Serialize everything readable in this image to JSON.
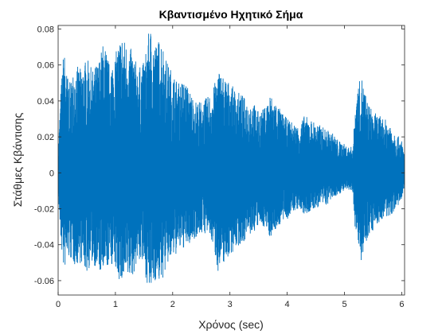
{
  "chart_data": {
    "type": "line",
    "title": "Κβαντισμένο Ηχητικό Σήμα",
    "xlabel": "Χρόνος (sec)",
    "ylabel": "Στάθμες Κβάντισης",
    "xlim": [
      0,
      6.05
    ],
    "ylim": [
      -0.068,
      0.082
    ],
    "x_ticks": [
      0,
      1,
      2,
      3,
      4,
      5,
      6
    ],
    "x_tick_labels": [
      "0",
      "1",
      "2",
      "3",
      "4",
      "5",
      "6"
    ],
    "y_ticks": [
      -0.06,
      -0.04,
      -0.02,
      0,
      0.02,
      0.04,
      0.06,
      0.08
    ],
    "y_tick_labels": [
      "-0.06",
      "-0.04",
      "-0.02",
      "0",
      "0.02",
      "0.04",
      "0.06",
      "0.08"
    ],
    "grid": false,
    "line_color": "#0072BD",
    "series": [
      {
        "x": [
          0.0,
          0.05,
          0.1,
          0.15,
          0.2,
          0.3,
          0.4,
          0.5,
          0.6,
          0.7,
          0.8,
          0.9,
          1.0,
          1.1,
          1.2,
          1.3,
          1.4,
          1.5,
          1.6,
          1.7,
          1.8,
          1.9,
          2.0,
          2.1,
          2.2,
          2.3,
          2.4,
          2.5,
          2.6,
          2.7,
          2.8,
          2.9,
          3.0,
          3.1,
          3.2,
          3.3,
          3.4,
          3.5,
          3.6,
          3.7,
          3.8,
          3.9,
          4.0,
          4.1,
          4.2,
          4.3,
          4.4,
          4.5,
          4.6,
          4.7,
          4.8,
          4.9,
          5.0,
          5.1,
          5.15,
          5.2,
          5.25,
          5.3,
          5.4,
          5.5,
          5.6,
          5.7,
          5.8,
          5.9,
          6.0,
          6.05
        ],
        "y_max": [
          0.012,
          0.048,
          0.07,
          0.056,
          0.05,
          0.06,
          0.058,
          0.064,
          0.057,
          0.062,
          0.074,
          0.06,
          0.066,
          0.078,
          0.072,
          0.068,
          0.058,
          0.062,
          0.082,
          0.072,
          0.076,
          0.062,
          0.056,
          0.05,
          0.052,
          0.046,
          0.04,
          0.04,
          0.042,
          0.046,
          0.058,
          0.054,
          0.05,
          0.046,
          0.044,
          0.04,
          0.04,
          0.034,
          0.036,
          0.044,
          0.04,
          0.034,
          0.03,
          0.028,
          0.026,
          0.032,
          0.03,
          0.028,
          0.026,
          0.024,
          0.022,
          0.018,
          0.016,
          0.014,
          0.016,
          0.044,
          0.05,
          0.054,
          0.04,
          0.034,
          0.032,
          0.03,
          0.028,
          0.022,
          0.018,
          0.01
        ],
        "y_min": [
          -0.012,
          -0.04,
          -0.055,
          -0.05,
          -0.048,
          -0.052,
          -0.05,
          -0.056,
          -0.05,
          -0.055,
          -0.058,
          -0.05,
          -0.054,
          -0.063,
          -0.06,
          -0.058,
          -0.048,
          -0.054,
          -0.068,
          -0.06,
          -0.062,
          -0.052,
          -0.048,
          -0.044,
          -0.042,
          -0.04,
          -0.036,
          -0.034,
          -0.034,
          -0.04,
          -0.056,
          -0.05,
          -0.046,
          -0.042,
          -0.04,
          -0.036,
          -0.034,
          -0.03,
          -0.03,
          -0.036,
          -0.032,
          -0.028,
          -0.026,
          -0.022,
          -0.02,
          -0.024,
          -0.022,
          -0.02,
          -0.018,
          -0.018,
          -0.014,
          -0.012,
          -0.01,
          -0.01,
          -0.012,
          -0.038,
          -0.042,
          -0.05,
          -0.036,
          -0.032,
          -0.028,
          -0.026,
          -0.024,
          -0.02,
          -0.016,
          -0.008
        ]
      }
    ]
  }
}
